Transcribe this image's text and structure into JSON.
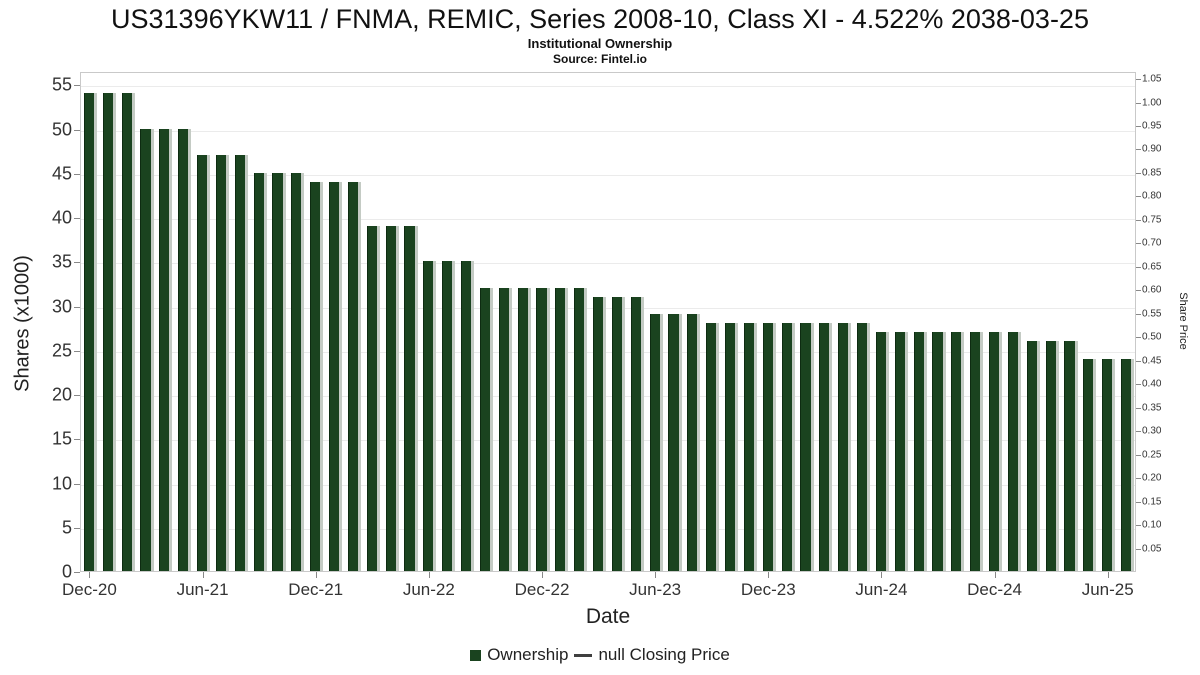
{
  "header": {
    "title": "US31396YKW11 / FNMA, REMIC, Series 2008-10, Class XI - 4.522% 2038-03-25",
    "subtitle": "Institutional Ownership",
    "source": "Source: Fintel.io"
  },
  "chart_data": {
    "type": "bar",
    "title": "Institutional Ownership",
    "xlabel": "Date",
    "ylabel": "Shares (x1000)",
    "y2label": "Share Price",
    "ylim": [
      0,
      56.5
    ],
    "y2lim": [
      0,
      1.065
    ],
    "grid": true,
    "legend_position": "bottom",
    "bar_color": "#1a431f",
    "bar_edge_color": "#c4cbc4",
    "x": [
      "Dec-20",
      "Jan-21",
      "Feb-21",
      "Mar-21",
      "Apr-21",
      "May-21",
      "Jun-21",
      "Jul-21",
      "Aug-21",
      "Sep-21",
      "Oct-21",
      "Nov-21",
      "Dec-21",
      "Jan-22",
      "Feb-22",
      "Mar-22",
      "Apr-22",
      "May-22",
      "Jun-22",
      "Jul-22",
      "Aug-22",
      "Sep-22",
      "Oct-22",
      "Nov-22",
      "Dec-22",
      "Jan-23",
      "Feb-23",
      "Mar-23",
      "Apr-23",
      "May-23",
      "Jun-23",
      "Jul-23",
      "Aug-23",
      "Sep-23",
      "Oct-23",
      "Nov-23",
      "Dec-23",
      "Jan-24",
      "Feb-24",
      "Mar-24",
      "Apr-24",
      "May-24",
      "Jun-24",
      "Jul-24",
      "Aug-24",
      "Sep-24",
      "Oct-24",
      "Nov-24",
      "Dec-24",
      "Jan-25",
      "Feb-25",
      "Mar-25",
      "Apr-25",
      "May-25",
      "Jun-25",
      "Jul-25"
    ],
    "values": [
      54,
      54,
      54,
      50,
      50,
      50,
      47,
      47,
      47,
      45,
      45,
      45,
      44,
      44,
      44,
      39,
      39,
      39,
      35,
      35,
      35,
      32,
      32,
      32,
      32,
      32,
      32,
      31,
      31,
      31,
      29,
      29,
      29,
      28,
      28,
      28,
      28,
      28,
      28,
      28,
      28,
      28,
      27,
      27,
      27,
      27,
      27,
      27,
      27,
      27,
      26,
      26,
      26,
      24,
      24,
      24
    ],
    "yticks": [
      0,
      5,
      10,
      15,
      20,
      25,
      30,
      35,
      40,
      45,
      50,
      55
    ],
    "y2ticks": [
      0.05,
      0.1,
      0.15,
      0.2,
      0.25,
      0.3,
      0.35,
      0.4,
      0.45,
      0.5,
      0.55,
      0.6,
      0.65,
      0.7,
      0.75,
      0.8,
      0.85,
      0.9,
      0.95,
      1.0,
      1.05
    ],
    "xticks": [
      "Dec-20",
      "Jun-21",
      "Dec-21",
      "Jun-22",
      "Dec-22",
      "Jun-23",
      "Dec-23",
      "Jun-24",
      "Dec-24",
      "Jun-25"
    ],
    "legend": [
      {
        "label": "Ownership",
        "swatch": "square",
        "color": "#1a431f"
      },
      {
        "label": "null Closing Price",
        "swatch": "line",
        "color": "#3f3f3f"
      }
    ]
  }
}
